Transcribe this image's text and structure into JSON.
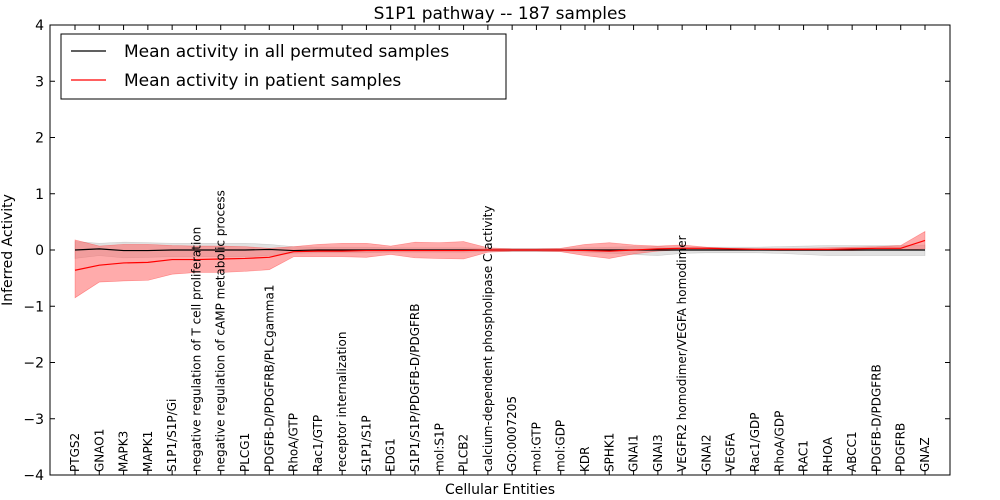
{
  "chart_data": {
    "type": "line",
    "title": "S1P1 pathway -- 187 samples",
    "xlabel": "Cellular Entities",
    "ylabel": "Inferred Activity",
    "ylim": [
      -4,
      4
    ],
    "yticks": [
      -4,
      -3,
      -2,
      -1,
      0,
      1,
      2,
      3,
      4
    ],
    "ytick_labels": [
      "−4",
      "−3",
      "−2",
      "−1",
      "0",
      "1",
      "2",
      "3",
      "4"
    ],
    "categories": [
      "PTGS2",
      "GNAO1",
      "MAPK3",
      "MAPK1",
      "S1P1/S1P/Gi",
      "negative regulation of T cell proliferation",
      "negative regulation of cAMP metabolic process",
      "PLCG1",
      "PDGFB-D/PDGFRB/PLCgamma1",
      "RhoA/GTP",
      "Rac1/GTP",
      "receptor internalization",
      "S1P1/S1P",
      "EDG1",
      "S1P1/S1P/PDGFB-D/PDGFRB",
      "mol:S1P",
      "PLCB2",
      "calcium-dependent phospholipase C activity",
      "GO:0007205",
      "mol:GTP",
      "mol:GDP",
      "KDR",
      "SPHK1",
      "GNAI1",
      "GNAI3",
      "VEGFR2 homodimer/VEGFA homodimer",
      "GNAI2",
      "VEGFA",
      "Rac1/GDP",
      "RhoA/GDP",
      "RAC1",
      "RHOA",
      "ABCC1",
      "PDGFB-D/PDGFRB",
      "PDGFRB",
      "GNAZ"
    ],
    "legend": {
      "placement": "top-left",
      "entries": [
        {
          "label": "Mean activity in all permuted samples",
          "color": "#000000"
        },
        {
          "label": "Mean activity in patient samples",
          "color": "#ff0000"
        }
      ]
    },
    "series": [
      {
        "name": "Mean activity in all permuted samples",
        "color": "#000000",
        "band_color": "#c8c8c8",
        "values": [
          0.0,
          0.02,
          -0.01,
          -0.01,
          0.0,
          0.0,
          0.0,
          0.0,
          0.01,
          -0.01,
          0.0,
          0.0,
          0.0,
          0.0,
          0.0,
          0.0,
          0.0,
          0.0,
          0.0,
          0.0,
          0.0,
          0.0,
          0.0,
          0.0,
          0.0,
          0.0,
          0.0,
          0.0,
          0.0,
          0.0,
          0.0,
          0.0,
          0.0,
          0.0,
          0.0,
          0.0
        ],
        "upper": [
          0.15,
          0.12,
          0.14,
          0.13,
          0.12,
          0.12,
          0.12,
          0.12,
          0.1,
          0.06,
          0.05,
          0.05,
          0.05,
          0.04,
          0.04,
          0.04,
          0.04,
          0.03,
          0.03,
          0.03,
          0.03,
          0.04,
          0.05,
          0.06,
          0.06,
          0.05,
          0.05,
          0.05,
          0.05,
          0.06,
          0.07,
          0.08,
          0.08,
          0.08,
          0.08,
          0.09
        ],
        "lower": [
          -0.15,
          -0.1,
          -0.14,
          -0.13,
          -0.12,
          -0.12,
          -0.12,
          -0.12,
          -0.1,
          -0.06,
          -0.05,
          -0.05,
          -0.05,
          -0.04,
          -0.04,
          -0.04,
          -0.04,
          -0.03,
          -0.03,
          -0.03,
          -0.03,
          -0.04,
          -0.06,
          -0.08,
          -0.1,
          -0.06,
          -0.05,
          -0.05,
          -0.05,
          -0.06,
          -0.08,
          -0.1,
          -0.1,
          -0.1,
          -0.1,
          -0.1
        ]
      },
      {
        "name": "Mean activity in patient samples",
        "color": "#ff0000",
        "band_color": "#ff6666",
        "values": [
          -0.36,
          -0.27,
          -0.23,
          -0.22,
          -0.17,
          -0.17,
          -0.16,
          -0.15,
          -0.13,
          -0.03,
          -0.02,
          -0.02,
          -0.01,
          -0.01,
          -0.01,
          -0.01,
          -0.01,
          0.0,
          0.0,
          0.0,
          0.0,
          -0.01,
          -0.02,
          0.0,
          0.02,
          0.03,
          0.03,
          0.02,
          0.01,
          0.01,
          0.01,
          0.01,
          0.02,
          0.03,
          0.03,
          0.17
        ],
        "upper": [
          0.18,
          0.07,
          0.1,
          0.1,
          0.08,
          0.07,
          0.07,
          0.06,
          0.03,
          0.06,
          0.1,
          0.12,
          0.12,
          0.07,
          0.14,
          0.13,
          0.15,
          0.04,
          0.02,
          0.02,
          0.03,
          0.1,
          0.13,
          0.09,
          0.07,
          0.09,
          0.05,
          0.03,
          0.03,
          0.03,
          0.03,
          0.04,
          0.05,
          0.06,
          0.08,
          0.33
        ],
        "lower": [
          -0.85,
          -0.57,
          -0.55,
          -0.54,
          -0.43,
          -0.4,
          -0.4,
          -0.38,
          -0.35,
          -0.12,
          -0.12,
          -0.12,
          -0.13,
          -0.08,
          -0.14,
          -0.15,
          -0.16,
          -0.04,
          -0.02,
          -0.02,
          -0.03,
          -0.1,
          -0.15,
          -0.07,
          -0.02,
          0.0,
          0.0,
          0.0,
          0.0,
          -0.01,
          -0.01,
          -0.01,
          -0.01,
          0.0,
          0.0,
          0.02
        ]
      }
    ]
  }
}
